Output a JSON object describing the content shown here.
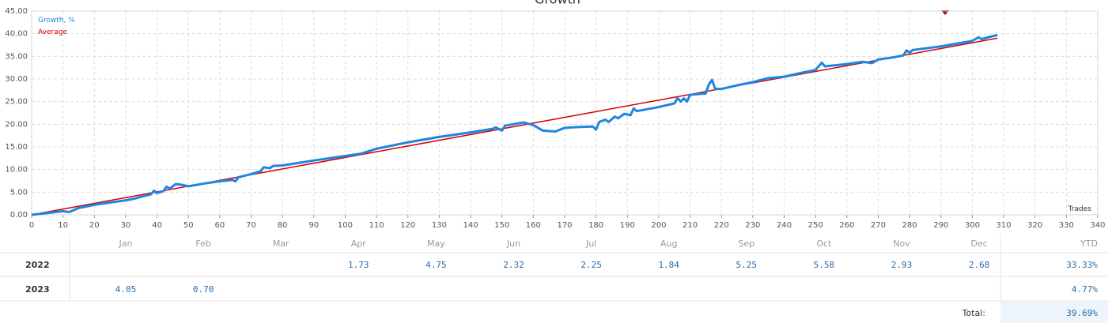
{
  "chart_data": {
    "type": "line",
    "title": "Growth",
    "x_label": "Trades",
    "xlim": [
      0,
      340
    ],
    "xticks": [
      0,
      10,
      20,
      30,
      40,
      50,
      60,
      70,
      80,
      90,
      100,
      110,
      120,
      130,
      140,
      150,
      160,
      170,
      180,
      190,
      200,
      210,
      220,
      230,
      240,
      250,
      260,
      270,
      280,
      290,
      300,
      310,
      320,
      330,
      340
    ],
    "ylim": [
      0,
      45
    ],
    "yticks": [
      {
        "value": 0,
        "label": "0.00"
      },
      {
        "value": 5,
        "label": "5.00"
      },
      {
        "value": 10,
        "label": "10.00"
      },
      {
        "value": 15,
        "label": "15.00"
      },
      {
        "value": 20,
        "label": "20.00"
      },
      {
        "value": 25,
        "label": "25.00"
      },
      {
        "value": 30,
        "label": "30.00"
      },
      {
        "value": 35,
        "label": "35.00"
      },
      {
        "value": 40,
        "label": "40.00"
      },
      {
        "value": 45,
        "label": "45.00"
      }
    ],
    "grid": true,
    "series": [
      {
        "name": "Growth, %",
        "color": "#1f86e0",
        "x": [
          0,
          5,
          10,
          12,
          15,
          20,
          25,
          30,
          33,
          35,
          38,
          39,
          40,
          42,
          43,
          44,
          46,
          48,
          50,
          55,
          60,
          64,
          65,
          66,
          70,
          73,
          74,
          76,
          77,
          80,
          90,
          100,
          105,
          110,
          115,
          120,
          130,
          140,
          147,
          148,
          150,
          151,
          157,
          160,
          163,
          167,
          170,
          175,
          179,
          180,
          181,
          183,
          184,
          186,
          187,
          189,
          191,
          192,
          193,
          200,
          205,
          206,
          207,
          208,
          209,
          210,
          215,
          216,
          217,
          218,
          220,
          225,
          230,
          235,
          240,
          245,
          250,
          252,
          253,
          260,
          265,
          268,
          270,
          275,
          278,
          279,
          280,
          281,
          290,
          300,
          302,
          303,
          305,
          308
        ],
        "values": [
          0,
          0.4,
          0.8,
          0.6,
          1.5,
          2.2,
          2.7,
          3.2,
          3.6,
          4.0,
          4.5,
          5.3,
          4.8,
          5.2,
          6.2,
          5.8,
          6.8,
          6.6,
          6.3,
          6.9,
          7.4,
          7.7,
          7.4,
          8.3,
          9.0,
          9.6,
          10.5,
          10.3,
          10.8,
          10.9,
          12.0,
          13.0,
          13.5,
          14.6,
          15.3,
          16.0,
          17.2,
          18.2,
          19.0,
          19.3,
          18.6,
          19.7,
          20.4,
          19.8,
          18.6,
          18.4,
          19.2,
          19.4,
          19.5,
          18.8,
          20.5,
          21.0,
          20.5,
          21.7,
          21.3,
          22.3,
          22.0,
          23.5,
          22.9,
          23.8,
          24.6,
          25.8,
          25.0,
          25.7,
          25.0,
          26.5,
          26.8,
          28.8,
          29.8,
          27.8,
          27.8,
          28.6,
          29.3,
          30.2,
          30.5,
          31.3,
          32.0,
          33.6,
          32.8,
          33.3,
          33.8,
          33.5,
          34.3,
          34.8,
          35.2,
          36.3,
          35.8,
          36.4,
          37.2,
          38.4,
          39.2,
          38.8,
          39.2,
          39.7
        ]
      },
      {
        "name": "Average",
        "color": "#d40000",
        "x": [
          0,
          308
        ],
        "values": [
          0,
          39
        ]
      }
    ]
  },
  "table": {
    "header": [
      "Jan",
      "Feb",
      "Mar",
      "Apr",
      "May",
      "Jun",
      "Jul",
      "Aug",
      "Sep",
      "Oct",
      "Nov",
      "Dec",
      "YTD"
    ],
    "rows": [
      {
        "year": "2022",
        "months": [
          null,
          null,
          null,
          "1.73",
          "4.75",
          "2.32",
          "2.25",
          "1.84",
          "5.25",
          "5.58",
          "2.93",
          "2.68"
        ],
        "ytd": "33.33%"
      },
      {
        "year": "2023",
        "months": [
          "4.05",
          "0.70",
          null,
          null,
          null,
          null,
          null,
          null,
          null,
          null,
          null,
          null
        ],
        "ytd": "4.77%"
      }
    ],
    "total_label": "Total:",
    "total": "39.69%"
  }
}
